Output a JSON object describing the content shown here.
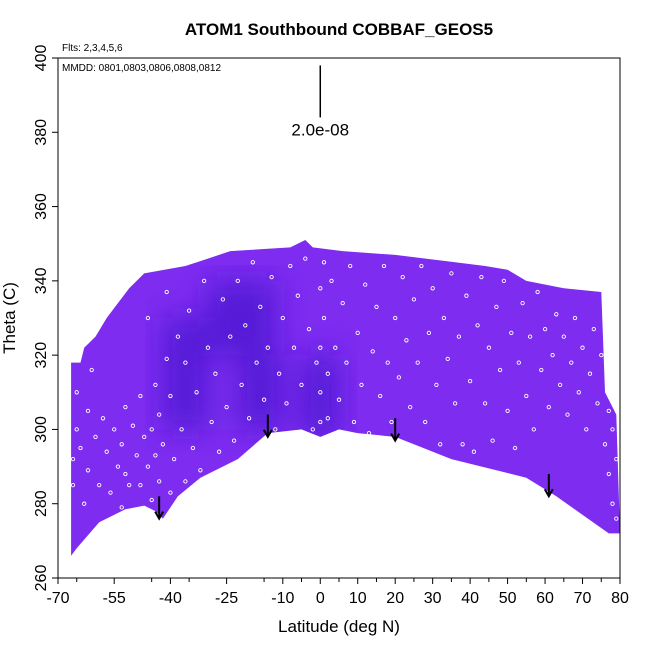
{
  "chart_data": {
    "type": "heatmap",
    "title": "ATOM1 Southbound COBBAF_GEOS5",
    "annotations": {
      "flights": "Flts: 2,3,4,5,6",
      "dates": "MMDD: 0801,0803,0806,0808,0812",
      "scale_label": "2.0e-08"
    },
    "xlabel": "Latitude (deg N)",
    "ylabel": "Theta (C)",
    "xlim": [
      -70,
      80
    ],
    "ylim": [
      260,
      400
    ],
    "x_ticks": [
      -70,
      -55,
      -40,
      -25,
      -10,
      0,
      10,
      20,
      30,
      40,
      50,
      60,
      70,
      80
    ],
    "x_tick_labels": [
      "-70",
      "-55",
      "-40",
      "-25",
      "-10",
      "0",
      "10",
      "20",
      "30",
      "40",
      "50",
      "60",
      "70",
      "80"
    ],
    "y_ticks": [
      260,
      280,
      300,
      320,
      340,
      360,
      380,
      400
    ],
    "y_tick_labels": [
      "260",
      "280",
      "300",
      "320",
      "340",
      "360",
      "380",
      "400"
    ],
    "grid": false,
    "colors": {
      "field_base": "#7d2cf0",
      "field_dark": "#4a18cf",
      "field_light": "#8b32f4",
      "samples": "#ffffff",
      "arrows": "#000000"
    },
    "field_bottom": [
      [
        -66.5,
        266
      ],
      [
        -65,
        268
      ],
      [
        -59,
        275
      ],
      [
        -52,
        278.5
      ],
      [
        -47,
        279.5
      ],
      [
        -44,
        278
      ],
      [
        -42,
        276
      ],
      [
        -38,
        282
      ],
      [
        -32,
        287
      ],
      [
        -22,
        292
      ],
      [
        -14,
        299
      ],
      [
        -5,
        300
      ],
      [
        0,
        298
      ],
      [
        5,
        300
      ],
      [
        10,
        299
      ],
      [
        20,
        298
      ],
      [
        25,
        296
      ],
      [
        35,
        292
      ],
      [
        55,
        287
      ],
      [
        63,
        282
      ],
      [
        77,
        272
      ]
    ],
    "field_top": [
      [
        -66.5,
        318
      ],
      [
        -64,
        318
      ],
      [
        -63,
        322
      ],
      [
        -60,
        325
      ],
      [
        -57,
        330
      ],
      [
        -54,
        334
      ],
      [
        -51,
        338
      ],
      [
        -47,
        342
      ],
      [
        -36,
        344
      ],
      [
        -30,
        346
      ],
      [
        -24,
        348
      ],
      [
        -8,
        349
      ],
      [
        -4,
        351
      ],
      [
        -2,
        349
      ],
      [
        6,
        348
      ],
      [
        20,
        347
      ],
      [
        36,
        345
      ],
      [
        44,
        344
      ],
      [
        50,
        343
      ],
      [
        55,
        340
      ],
      [
        65,
        338
      ],
      [
        75,
        337
      ],
      [
        76,
        310
      ],
      [
        79,
        304
      ],
      [
        80,
        272
      ]
    ],
    "dark_regions": [
      {
        "x": [
          -42,
          -30
        ],
        "y": [
          300,
          330
        ]
      },
      {
        "x": [
          -5,
          5
        ],
        "y": [
          298,
          320
        ]
      },
      {
        "x": [
          -22,
          -10
        ],
        "y": [
          300,
          320
        ]
      },
      {
        "x": [
          -30,
          -12
        ],
        "y": [
          320,
          340
        ]
      }
    ],
    "arrows": [
      {
        "x": -43,
        "y_start": 282,
        "y_end": 276
      },
      {
        "x": -14,
        "y_start": 304,
        "y_end": 298
      },
      {
        "x": 20,
        "y_start": 303,
        "y_end": 297
      },
      {
        "x": 61,
        "y_start": 288,
        "y_end": 282
      }
    ],
    "scale_bar": {
      "x": 0,
      "y_start": 384,
      "y_end": 398
    },
    "samples": [
      [
        -66,
        285
      ],
      [
        -66,
        292
      ],
      [
        -65,
        300
      ],
      [
        -65,
        310
      ],
      [
        -64,
        295
      ],
      [
        -63,
        280
      ],
      [
        -62,
        289
      ],
      [
        -62,
        305
      ],
      [
        -61,
        316
      ],
      [
        -60,
        298
      ],
      [
        -59,
        285
      ],
      [
        -58,
        303
      ],
      [
        -57,
        294
      ],
      [
        -56,
        283
      ],
      [
        -55,
        300
      ],
      [
        -54,
        290
      ],
      [
        -53,
        279
      ],
      [
        -53,
        296
      ],
      [
        -52,
        288
      ],
      [
        -52,
        306
      ],
      [
        -51,
        285
      ],
      [
        -50,
        301
      ],
      [
        -49,
        293
      ],
      [
        -48,
        285
      ],
      [
        -48,
        309
      ],
      [
        -47,
        298
      ],
      [
        -46,
        290
      ],
      [
        -46,
        330
      ],
      [
        -45,
        281
      ],
      [
        -45,
        300
      ],
      [
        -44,
        293
      ],
      [
        -44,
        312
      ],
      [
        -43,
        286
      ],
      [
        -43,
        304
      ],
      [
        -42,
        296
      ],
      [
        -41,
        319
      ],
      [
        -41,
        337
      ],
      [
        -40,
        283
      ],
      [
        -40,
        309
      ],
      [
        -39,
        292
      ],
      [
        -38,
        325
      ],
      [
        -37,
        300
      ],
      [
        -36,
        286
      ],
      [
        -36,
        318
      ],
      [
        -35,
        332
      ],
      [
        -34,
        295
      ],
      [
        -33,
        310
      ],
      [
        -32,
        289
      ],
      [
        -31,
        340
      ],
      [
        -30,
        322
      ],
      [
        -29,
        302
      ],
      [
        -28,
        315
      ],
      [
        -27,
        294
      ],
      [
        -26,
        335
      ],
      [
        -25,
        306
      ],
      [
        -24,
        325
      ],
      [
        -23,
        297
      ],
      [
        -22,
        340
      ],
      [
        -21,
        312
      ],
      [
        -20,
        328
      ],
      [
        -19,
        303
      ],
      [
        -18,
        345
      ],
      [
        -17,
        318
      ],
      [
        -16,
        333
      ],
      [
        -15,
        308
      ],
      [
        -14,
        322
      ],
      [
        -13,
        341
      ],
      [
        -12,
        300
      ],
      [
        -11,
        315
      ],
      [
        -10,
        330
      ],
      [
        -9,
        307
      ],
      [
        -8,
        344
      ],
      [
        -7,
        322
      ],
      [
        -6,
        336
      ],
      [
        -5,
        312
      ],
      [
        -4,
        346
      ],
      [
        -3,
        327
      ],
      [
        -2,
        300
      ],
      [
        -1,
        318
      ],
      [
        0,
        338
      ],
      [
        0,
        322
      ],
      [
        0,
        310
      ],
      [
        0,
        302
      ],
      [
        1,
        345
      ],
      [
        1,
        330
      ],
      [
        2,
        315
      ],
      [
        2,
        303
      ],
      [
        3,
        340
      ],
      [
        4,
        322
      ],
      [
        5,
        308
      ],
      [
        6,
        334
      ],
      [
        7,
        318
      ],
      [
        8,
        344
      ],
      [
        9,
        302
      ],
      [
        10,
        326
      ],
      [
        11,
        312
      ],
      [
        12,
        339
      ],
      [
        13,
        299
      ],
      [
        14,
        321
      ],
      [
        15,
        333
      ],
      [
        16,
        309
      ],
      [
        17,
        344
      ],
      [
        18,
        318
      ],
      [
        19,
        302
      ],
      [
        20,
        330
      ],
      [
        21,
        314
      ],
      [
        22,
        341
      ],
      [
        23,
        324
      ],
      [
        24,
        306
      ],
      [
        25,
        335
      ],
      [
        26,
        318
      ],
      [
        27,
        344
      ],
      [
        28,
        302
      ],
      [
        29,
        326
      ],
      [
        30,
        338
      ],
      [
        31,
        312
      ],
      [
        32,
        296
      ],
      [
        33,
        330
      ],
      [
        34,
        319
      ],
      [
        35,
        342
      ],
      [
        36,
        307
      ],
      [
        37,
        325
      ],
      [
        38,
        296
      ],
      [
        39,
        336
      ],
      [
        40,
        313
      ],
      [
        41,
        294
      ],
      [
        42,
        328
      ],
      [
        43,
        341
      ],
      [
        44,
        307
      ],
      [
        45,
        322
      ],
      [
        46,
        297
      ],
      [
        47,
        333
      ],
      [
        48,
        316
      ],
      [
        49,
        340
      ],
      [
        50,
        305
      ],
      [
        51,
        326
      ],
      [
        52,
        295
      ],
      [
        53,
        318
      ],
      [
        54,
        334
      ],
      [
        55,
        309
      ],
      [
        56,
        325
      ],
      [
        57,
        300
      ],
      [
        58,
        337
      ],
      [
        59,
        316
      ],
      [
        60,
        327
      ],
      [
        61,
        306
      ],
      [
        62,
        320
      ],
      [
        63,
        331
      ],
      [
        64,
        312
      ],
      [
        65,
        325
      ],
      [
        66,
        304
      ],
      [
        67,
        318
      ],
      [
        68,
        330
      ],
      [
        69,
        310
      ],
      [
        70,
        322
      ],
      [
        71,
        300
      ],
      [
        72,
        315
      ],
      [
        73,
        327
      ],
      [
        74,
        307
      ],
      [
        75,
        320
      ],
      [
        76,
        296
      ],
      [
        77,
        288
      ],
      [
        78,
        280
      ],
      [
        79,
        292
      ],
      [
        79,
        276
      ],
      [
        78,
        300
      ],
      [
        77,
        305
      ]
    ]
  }
}
